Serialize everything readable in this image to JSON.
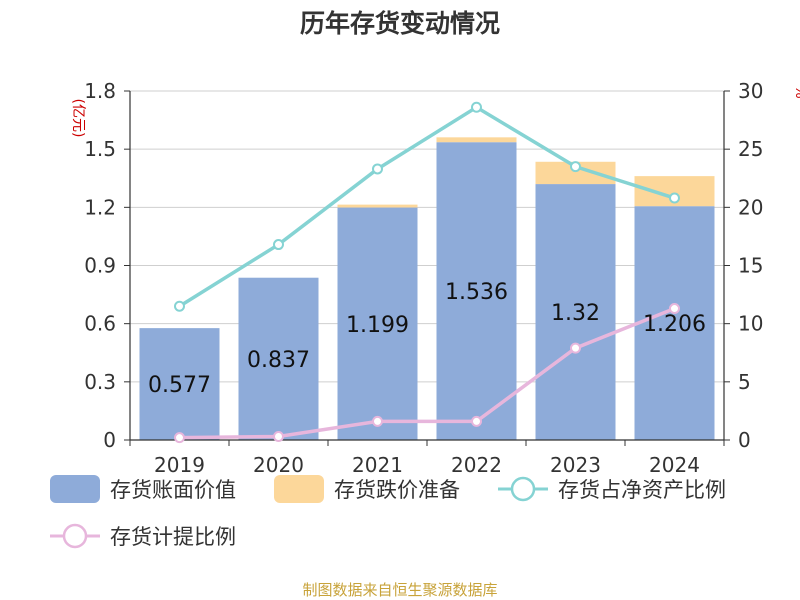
{
  "colors": {
    "book_value": "#8eabd9",
    "impairment": "#fcd79a",
    "ratio_net_assets": "#85d3d3",
    "provision_ratio": "#e7b6dc",
    "unit_label": "#cc0000",
    "source": "#c8a33a"
  },
  "chart_data": {
    "type": "bar",
    "title": "历年存货变动情况",
    "left_axis_unit": "(亿元)",
    "right_axis_unit": "%",
    "categories": [
      "2019",
      "2020",
      "2021",
      "2022",
      "2023",
      "2024"
    ],
    "left_ylim": [
      0,
      1.8
    ],
    "left_ticks": [
      "0",
      "0.3",
      "0.6",
      "0.9",
      "1.2",
      "1.5",
      "1.8"
    ],
    "right_ylim": [
      0,
      30
    ],
    "right_ticks": [
      "0",
      "5",
      "10",
      "15",
      "20",
      "25",
      "30"
    ],
    "grid": true,
    "legend_position": "bottom",
    "series": [
      {
        "name": "存货账面价值",
        "kind": "bar",
        "axis": "left",
        "values": [
          0.577,
          0.837,
          1.199,
          1.536,
          1.32,
          1.206
        ],
        "labels": [
          "0.577",
          "0.837",
          "1.199",
          "1.536",
          "1.32",
          "1.206"
        ]
      },
      {
        "name": "存货跌价准备",
        "kind": "bar-stacked",
        "axis": "left",
        "values": [
          0.0,
          0.0,
          0.015,
          0.025,
          0.115,
          0.155
        ]
      },
      {
        "name": "存货占净资产比例",
        "kind": "line",
        "axis": "right",
        "values": [
          11.5,
          16.8,
          23.3,
          28.6,
          23.5,
          20.8
        ]
      },
      {
        "name": "存货计提比例",
        "kind": "line",
        "axis": "right",
        "values": [
          0.2,
          0.3,
          1.6,
          1.6,
          7.9,
          11.3
        ]
      }
    ]
  },
  "source_text": "制图数据来自恒生聚源数据库"
}
